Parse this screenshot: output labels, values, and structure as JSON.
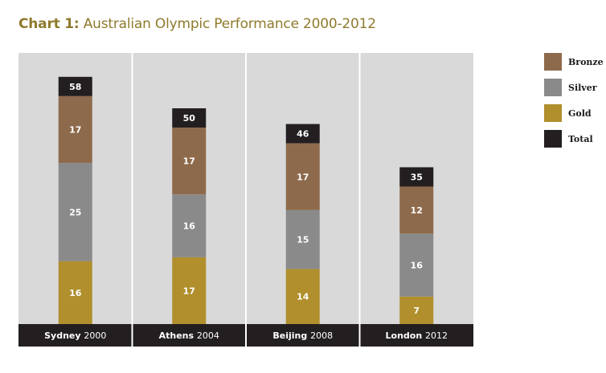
{
  "title": {
    "prefix": "Chart 1:",
    "text": "Australian Olympic Performance 2000-2012"
  },
  "colors": {
    "gold": "#b08f2c",
    "silver": "#8a8a8a",
    "bronze": "#8e6a4c",
    "total": "#231f20",
    "panel": "#d9d9d9",
    "title": "#8f7a2c",
    "bar_label": "#ffffff"
  },
  "chart_data": {
    "type": "bar",
    "stacked": true,
    "title": "Chart 1: Australian Olympic Performance 2000-2012",
    "xlabel": "",
    "ylabel": "",
    "grid": false,
    "legend_position": "right",
    "categories": [
      {
        "bold": "Sydney",
        "rest": "2000"
      },
      {
        "bold": "Athens",
        "rest": "2004"
      },
      {
        "bold": "Beijing",
        "rest": "2008"
      },
      {
        "bold": "London",
        "rest": "2012"
      }
    ],
    "series": [
      {
        "name": "Gold",
        "color_key": "gold",
        "values": [
          16,
          17,
          14,
          7
        ]
      },
      {
        "name": "Silver",
        "color_key": "silver",
        "values": [
          25,
          16,
          15,
          16
        ]
      },
      {
        "name": "Bronze",
        "color_key": "bronze",
        "values": [
          17,
          17,
          17,
          12
        ]
      }
    ],
    "totals": {
      "name": "Total",
      "values": [
        58,
        50,
        46,
        35
      ]
    },
    "ylim": [
      0,
      65
    ]
  },
  "legend": [
    {
      "label": "Bronze",
      "color_key": "bronze"
    },
    {
      "label": "Silver",
      "color_key": "silver"
    },
    {
      "label": "Gold",
      "color_key": "gold"
    },
    {
      "label": "Total",
      "color_key": "total"
    }
  ]
}
